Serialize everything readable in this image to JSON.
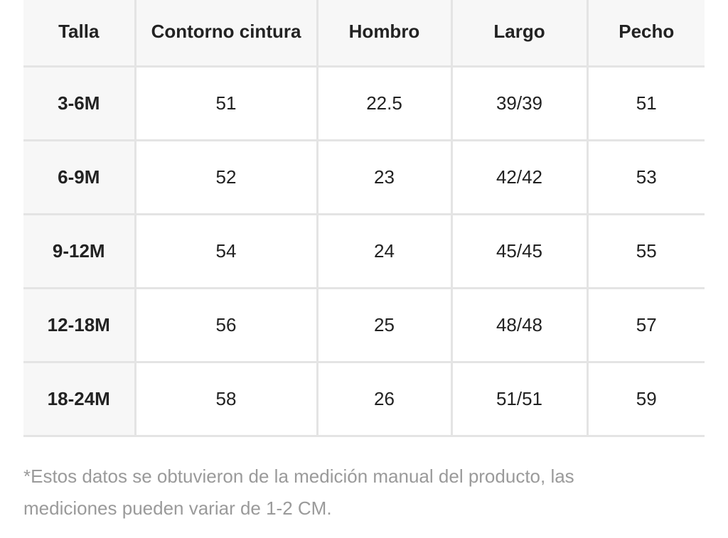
{
  "table": {
    "header": [
      "Talla",
      "Contorno cintura",
      "Hombro",
      "Largo",
      "Pecho"
    ],
    "rows": [
      [
        "3-6M",
        51,
        22.5,
        "39/39",
        51
      ],
      [
        "6-9M",
        52,
        23,
        "42/42",
        53
      ],
      [
        "9-12M",
        54,
        24,
        "45/45",
        55
      ],
      [
        "12-18M",
        56,
        25,
        "48/48",
        57
      ],
      [
        "18-24M",
        58,
        26,
        "51/51",
        59
      ]
    ]
  },
  "footnote": "*Estos datos se obtuvieron de la medición manual del producto, las mediciones pueden variar de 1-2 CM."
}
